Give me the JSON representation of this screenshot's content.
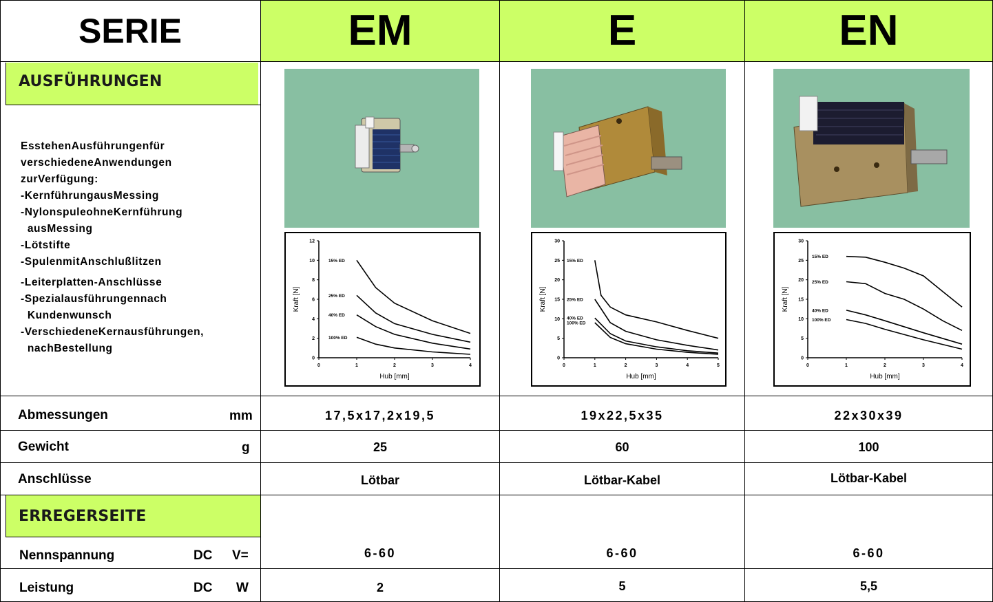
{
  "header": {
    "series_label": "SERIE",
    "columns": [
      "EM",
      "E",
      "EN"
    ]
  },
  "sections": {
    "variants": "AUSFÜHRUNGEN",
    "exciter": "ERREGERSEITE"
  },
  "description": [
    "EsstehenAusführungenfür",
    "verschiedeneAnwendungen",
    "zurVerfügung:",
    "-KernführungausMessing",
    "-NylonspuleohneKernführung",
    "  ausMessing",
    "-Lötstifte",
    "-SpulenmitAnschlußlitzen",
    "-Leiterplatten-Anschlüsse",
    "-Spezialausführungennach",
    "  Kundenwunsch",
    "-VerschiedeneKernausführungen,",
    "  nachBestellung"
  ],
  "rows": {
    "dimensions": {
      "label": "Abmessungen",
      "unit": "mm",
      "values": [
        "17,5x17,2x19,5",
        "19x22,5x35",
        "22x30x39"
      ]
    },
    "weight": {
      "label": "Gewicht",
      "unit": "g",
      "values": [
        "25",
        "60",
        "100"
      ]
    },
    "connections": {
      "label": "Anschlüsse",
      "unit": "",
      "values": [
        "Lötbar",
        "Lötbar-Kabel",
        "Lötbar-Kabel"
      ]
    },
    "voltage": {
      "label": "Nennspannung",
      "unit_dc": "DC",
      "unit": "V=",
      "values": [
        "6-60",
        "6-60",
        "6-60"
      ]
    },
    "power": {
      "label": "Leistung",
      "unit_dc": "DC",
      "unit": "W",
      "values": [
        "2",
        "5",
        "5,5"
      ]
    }
  },
  "colors": {
    "header_green": "#ccff66",
    "photo_background": "#88bfa2"
  },
  "chart_data": [
    {
      "type": "line",
      "xlabel": "Hub [mm]",
      "ylabel": "Kraft [N]",
      "xlim": [
        0,
        4
      ],
      "ylim": [
        0,
        12
      ],
      "x_ticks": [
        "0",
        "1",
        "2",
        "3",
        "4"
      ],
      "y_ticks": [
        "0",
        "2",
        "4",
        "6",
        "8",
        "10",
        "12"
      ],
      "series": [
        {
          "name": "15% ED",
          "points": [
            [
              1,
              10
            ],
            [
              1.5,
              7.2
            ],
            [
              2,
              5.6
            ],
            [
              3,
              3.8
            ],
            [
              4,
              2.5
            ]
          ]
        },
        {
          "name": "25% ED",
          "points": [
            [
              1,
              6.4
            ],
            [
              1.5,
              4.6
            ],
            [
              2,
              3.5
            ],
            [
              3,
              2.4
            ],
            [
              4,
              1.6
            ]
          ]
        },
        {
          "name": "40% ED",
          "points": [
            [
              1,
              4.4
            ],
            [
              1.5,
              3.2
            ],
            [
              2,
              2.4
            ],
            [
              3,
              1.5
            ],
            [
              4,
              0.9
            ]
          ]
        },
        {
          "name": "100% ED",
          "points": [
            [
              1,
              2.1
            ],
            [
              1.5,
              1.4
            ],
            [
              2,
              1.0
            ],
            [
              3,
              0.6
            ],
            [
              4,
              0.35
            ]
          ]
        }
      ]
    },
    {
      "type": "line",
      "xlabel": "Hub [mm]",
      "ylabel": "Kraft [N]",
      "xlim": [
        0,
        5
      ],
      "ylim": [
        0,
        30
      ],
      "x_ticks": [
        "0",
        "1",
        "2",
        "3",
        "4",
        "5"
      ],
      "y_ticks": [
        "0",
        "5",
        "10",
        "15",
        "20",
        "25",
        "30"
      ],
      "series": [
        {
          "name": "15% ED",
          "points": [
            [
              1,
              25
            ],
            [
              1.2,
              16
            ],
            [
              1.5,
              13
            ],
            [
              2,
              11
            ],
            [
              3,
              9.2
            ],
            [
              4,
              7
            ],
            [
              5,
              5
            ]
          ]
        },
        {
          "name": "25% ED",
          "points": [
            [
              1,
              15
            ],
            [
              1.5,
              9
            ],
            [
              2,
              6.8
            ],
            [
              3,
              4.6
            ],
            [
              4,
              3.2
            ],
            [
              5,
              2
            ]
          ]
        },
        {
          "name": "40% ED",
          "points": [
            [
              1,
              10.2
            ],
            [
              1.5,
              6.2
            ],
            [
              2,
              4.3
            ],
            [
              3,
              2.8
            ],
            [
              4,
              1.8
            ],
            [
              5,
              1.2
            ]
          ]
        },
        {
          "name": "100% ED",
          "points": [
            [
              1,
              9
            ],
            [
              1.5,
              5.2
            ],
            [
              2,
              3.6
            ],
            [
              3,
              2.2
            ],
            [
              4,
              1.4
            ],
            [
              5,
              0.9
            ]
          ]
        }
      ]
    },
    {
      "type": "line",
      "xlabel": "Hub [mm]",
      "ylabel": "Kraft [N]",
      "xlim": [
        0,
        4
      ],
      "ylim": [
        0,
        30
      ],
      "x_ticks": [
        "0",
        "1",
        "2",
        "3",
        "4"
      ],
      "y_ticks": [
        "0",
        "5",
        "10",
        "15",
        "20",
        "25",
        "30"
      ],
      "series": [
        {
          "name": "15% ED",
          "points": [
            [
              1,
              26
            ],
            [
              1.5,
              25.8
            ],
            [
              2,
              24.5
            ],
            [
              2.5,
              23
            ],
            [
              3,
              21
            ],
            [
              3.5,
              17
            ],
            [
              4,
              13
            ]
          ]
        },
        {
          "name": "25% ED",
          "points": [
            [
              1,
              19.5
            ],
            [
              1.5,
              19
            ],
            [
              2,
              16.5
            ],
            [
              2.5,
              15
            ],
            [
              3,
              12.5
            ],
            [
              3.5,
              9.5
            ],
            [
              4,
              7
            ]
          ]
        },
        {
          "name": "40% ED",
          "points": [
            [
              1,
              12.2
            ],
            [
              1.5,
              11
            ],
            [
              2,
              9.5
            ],
            [
              3,
              6.4
            ],
            [
              4,
              3.5
            ]
          ]
        },
        {
          "name": "100% ED",
          "points": [
            [
              1,
              9.8
            ],
            [
              1.5,
              8.8
            ],
            [
              2,
              7.3
            ],
            [
              3,
              4.6
            ],
            [
              4,
              2.2
            ]
          ]
        }
      ]
    }
  ]
}
